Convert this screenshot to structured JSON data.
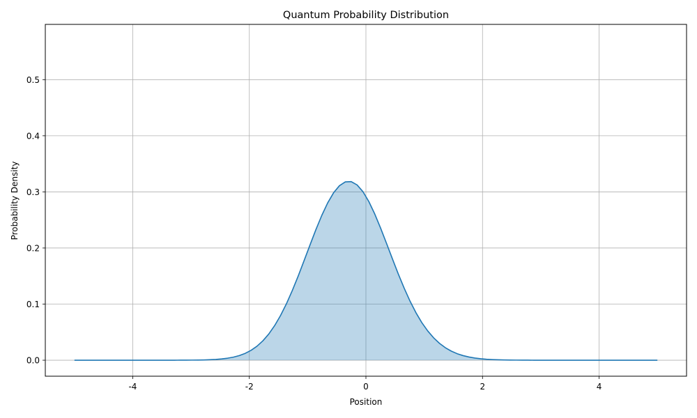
{
  "chart_data": {
    "type": "area",
    "title": "Quantum Probability Distribution",
    "xlabel": "Position",
    "ylabel": "Probability Density",
    "xlim": [
      -5.5,
      5.5
    ],
    "ylim": [
      -0.0285,
      0.5985
    ],
    "x_ticks": [
      -4,
      -2,
      0,
      2,
      4
    ],
    "x_tick_labels": [
      "-4",
      "-2",
      "0",
      "2",
      "4"
    ],
    "y_ticks": [
      0.0,
      0.1,
      0.2,
      0.3,
      0.4,
      0.5
    ],
    "y_tick_labels": [
      "0.0",
      "0.1",
      "0.2",
      "0.3",
      "0.4",
      "0.5"
    ],
    "grid": true,
    "legend": "none",
    "series": [
      {
        "x_range": [
          -5,
          5
        ],
        "num_points": 100,
        "values": [
          0.0,
          0.0,
          0.0,
          0.0,
          0.0,
          0.0,
          0.0,
          0.0,
          0.0,
          0.0,
          0.0,
          0.0,
          0.0,
          0.0,
          0.0,
          0.0,
          0.0,
          0.0,
          0.0001,
          0.0001,
          0.0002,
          0.0003,
          0.0005,
          0.0009,
          0.0014,
          0.0023,
          0.0036,
          0.0055,
          0.0083,
          0.0122,
          0.0177,
          0.025,
          0.0346,
          0.0467,
          0.0617,
          0.0797,
          0.1006,
          0.1243,
          0.1501,
          0.1775,
          0.2053,
          0.2326,
          0.258,
          0.2803,
          0.2983,
          0.311,
          0.3178,
          0.3183,
          0.3124,
          0.3003,
          0.2827,
          0.2606,
          0.2353,
          0.2082,
          0.1806,
          0.1536,
          0.1283,
          0.1051,
          0.0846,
          0.0669,
          0.0521,
          0.0399,
          0.03,
          0.0222,
          0.0162,
          0.0116,
          0.0082,
          0.0057,
          0.0039,
          0.0026,
          0.0017,
          0.0011,
          0.0007,
          0.0005,
          0.0003,
          0.0002,
          0.0001,
          0.0001,
          0.0,
          0.0,
          0.0,
          0.0,
          0.0,
          0.0,
          0.0,
          0.0,
          0.0,
          0.0,
          0.0,
          0.0,
          0.0,
          0.0,
          0.0,
          0.0,
          0.0,
          0.0,
          0.0,
          0.0,
          0.0,
          0.0
        ],
        "line_color": "#1f77b4",
        "fill_color": "#1f77b4",
        "fill_alpha": 0.3
      }
    ]
  }
}
